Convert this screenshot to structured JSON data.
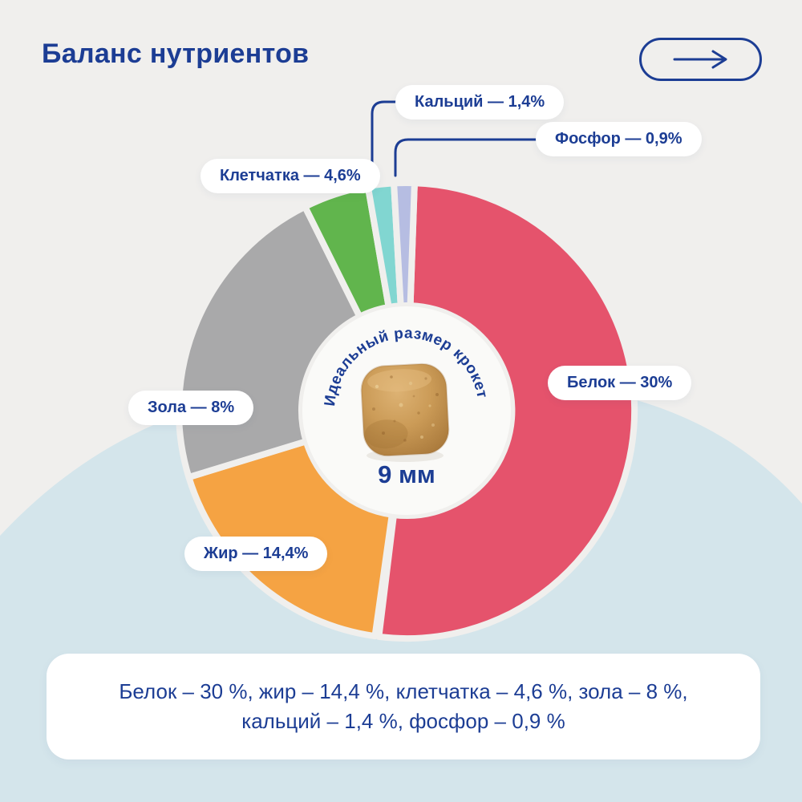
{
  "header": {
    "title": "Баланс нутриентов",
    "nav_icon": "arrow-right-icon"
  },
  "colors": {
    "navy": "#1c3d94",
    "background": "#f0efed",
    "wave": "#d4e5eb",
    "card": "#ffffff",
    "inner_circle": "#fafaf8",
    "gap_stroke": "#f0efed"
  },
  "chart_data": {
    "type": "pie",
    "subtype": "donut",
    "title": "Баланс нутриентов",
    "unit": "%",
    "legend_position": "callout-pills",
    "segments": [
      {
        "label": "Белок",
        "value_pct": 30,
        "display": "Белок — 30%",
        "color": "#e5536c",
        "start_deg": 2,
        "end_deg": 187
      },
      {
        "label": "Жир",
        "value_pct": 14.4,
        "display": "Жир — 14,4%",
        "color": "#f5a343",
        "start_deg": 188,
        "end_deg": 253
      },
      {
        "label": "Зола",
        "value_pct": 8,
        "display": "Зола — 8%",
        "color": "#a9a9aa",
        "start_deg": 253,
        "end_deg": 333.5
      },
      {
        "label": "Клетчатка",
        "value_pct": 4.6,
        "display": "Клетчатка — 4,6%",
        "color": "#61b54d",
        "start_deg": 333.5,
        "end_deg": 350.2
      },
      {
        "label": "Кальций",
        "value_pct": 1.4,
        "display": "Кальций — 1,4%",
        "color": "#81d6d1",
        "start_deg": 350.2,
        "end_deg": 356.8
      },
      {
        "label": "Фосфор",
        "value_pct": 0.9,
        "display": "Фосфор — 0,9%",
        "color": "#b6bde2",
        "start_deg": 356.8,
        "end_deg": 362
      }
    ],
    "center": {
      "curved_label": "Идеальный размер крокет",
      "size_label": "9 мм",
      "image": "kibble-photo"
    }
  },
  "summary": {
    "line1": "Белок – 30 %, жир – 14,4 %, клетчатка – 4,6 %, зола – 8 %,",
    "line2": "кальций – 1,4 %, фосфор – 0,9 %"
  }
}
